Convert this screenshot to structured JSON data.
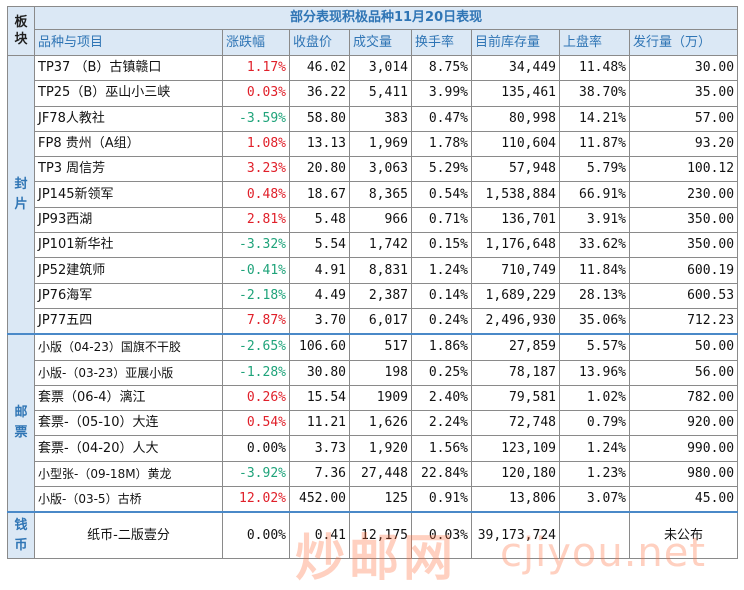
{
  "title": "部分表现积极品种11月20日表现",
  "board_header": "板块",
  "headers": [
    "品种与项目",
    "涨跌幅",
    "收盘价",
    "成交量",
    "换手率",
    "目前库存量",
    "上盘率",
    "发行量（万）"
  ],
  "sections": [
    {
      "board": "封片",
      "rows": [
        {
          "name": "TP37 （B）古镇赣口",
          "change": "1.17%",
          "trend": "up",
          "close": "46.02",
          "volume": "3,014",
          "turnover": "8.75%",
          "stock": "34,449",
          "rate": "11.48%",
          "issue": "30.00"
        },
        {
          "name": "TP25（B）巫山小三峡",
          "change": "0.03%",
          "trend": "up",
          "close": "36.22",
          "volume": "5,411",
          "turnover": "3.99%",
          "stock": "135,461",
          "rate": "38.70%",
          "issue": "35.00"
        },
        {
          "name": "JF78人教社",
          "change": "-3.59%",
          "trend": "down",
          "close": "58.80",
          "volume": "383",
          "turnover": "0.47%",
          "stock": "80,998",
          "rate": "14.21%",
          "issue": "57.00"
        },
        {
          "name": "FP8 贵州（A组）",
          "change": "1.08%",
          "trend": "up",
          "close": "13.13",
          "volume": "1,969",
          "turnover": "1.78%",
          "stock": "110,604",
          "rate": "11.87%",
          "issue": "93.20"
        },
        {
          "name": "TP3 周信芳",
          "change": "3.23%",
          "trend": "up",
          "close": "20.80",
          "volume": "3,063",
          "turnover": "5.29%",
          "stock": "57,948",
          "rate": "5.79%",
          "issue": "100.12"
        },
        {
          "name": "JP145新领军",
          "change": "0.48%",
          "trend": "up",
          "close": "18.67",
          "volume": "8,365",
          "turnover": "0.54%",
          "stock": "1,538,884",
          "rate": "66.91%",
          "issue": "230.00"
        },
        {
          "name": "JP93西湖",
          "change": "2.81%",
          "trend": "up",
          "close": "5.48",
          "volume": "966",
          "turnover": "0.71%",
          "stock": "136,701",
          "rate": "3.91%",
          "issue": "350.00"
        },
        {
          "name": "JP101新华社",
          "change": "-3.32%",
          "trend": "down",
          "close": "5.54",
          "volume": "1,742",
          "turnover": "0.15%",
          "stock": "1,176,648",
          "rate": "33.62%",
          "issue": "350.00"
        },
        {
          "name": "JP52建筑师",
          "change": "-0.41%",
          "trend": "down",
          "close": "4.91",
          "volume": "8,831",
          "turnover": "1.24%",
          "stock": "710,749",
          "rate": "11.84%",
          "issue": "600.19"
        },
        {
          "name": "JP76海军",
          "change": "-2.18%",
          "trend": "down",
          "close": "4.49",
          "volume": "2,387",
          "turnover": "0.14%",
          "stock": "1,689,229",
          "rate": "28.13%",
          "issue": "600.53"
        },
        {
          "name": "JP77五四",
          "change": "7.87%",
          "trend": "up",
          "close": "3.70",
          "volume": "6,017",
          "turnover": "0.24%",
          "stock": "2,496,930",
          "rate": "35.06%",
          "issue": "712.23"
        }
      ]
    },
    {
      "board": "邮票",
      "rows": [
        {
          "name": "小版（04-23）国旗不干胶",
          "change": "-2.65%",
          "trend": "down",
          "close": "106.60",
          "volume": "517",
          "turnover": "1.86%",
          "stock": "27,859",
          "rate": "5.57%",
          "issue": "50.00",
          "small": true
        },
        {
          "name": "小版-（03-23）亚展小版",
          "change": "-1.28%",
          "trend": "down",
          "close": "30.80",
          "volume": "198",
          "turnover": "0.25%",
          "stock": "78,187",
          "rate": "13.96%",
          "issue": "56.00",
          "small": true
        },
        {
          "name": "套票（06-4）漓江",
          "change": "0.26%",
          "trend": "up",
          "close": "15.54",
          "volume": "1909",
          "turnover": "2.40%",
          "stock": "79,581",
          "rate": "1.02%",
          "issue": "782.00"
        },
        {
          "name": "套票-（05-10）大连",
          "change": "0.54%",
          "trend": "up",
          "close": "11.21",
          "volume": "1,626",
          "turnover": "2.24%",
          "stock": "72,748",
          "rate": "0.79%",
          "issue": "920.00"
        },
        {
          "name": "套票-（04-20）人大",
          "change": "0.00%",
          "trend": "flat",
          "close": "3.73",
          "volume": "1,920",
          "turnover": "1.56%",
          "stock": "123,109",
          "rate": "1.24%",
          "issue": "990.00"
        },
        {
          "name": "小型张-（09-18M）黄龙",
          "change": "-3.92%",
          "trend": "down",
          "close": "7.36",
          "volume": "27,448",
          "turnover": "22.84%",
          "stock": "120,180",
          "rate": "1.23%",
          "issue": "980.00",
          "small": true
        },
        {
          "name": "小版-（03-5）古桥",
          "change": "12.02%",
          "trend": "up",
          "close": "452.00",
          "volume": "125",
          "turnover": "0.91%",
          "stock": "13,806",
          "rate": "3.07%",
          "issue": "45.00",
          "small": true
        }
      ]
    },
    {
      "board": "钱币",
      "rows": [
        {
          "name": "纸币-二版壹分",
          "change": "0.00%",
          "trend": "flat",
          "close": "0.41",
          "volume": "12,175",
          "turnover": "0.03%",
          "stock": "39,173,724",
          "rate": "",
          "issue": "未公布",
          "center": true
        }
      ]
    }
  ],
  "watermark": {
    "text_cn": "炒邮网",
    "url": "cjiyou.net"
  },
  "colors": {
    "header_bg": "#dbe8f5",
    "header_text": "#2f75b5",
    "up": "#e0202a",
    "down": "#1fa37a",
    "watermark": "#ff6e3c"
  }
}
